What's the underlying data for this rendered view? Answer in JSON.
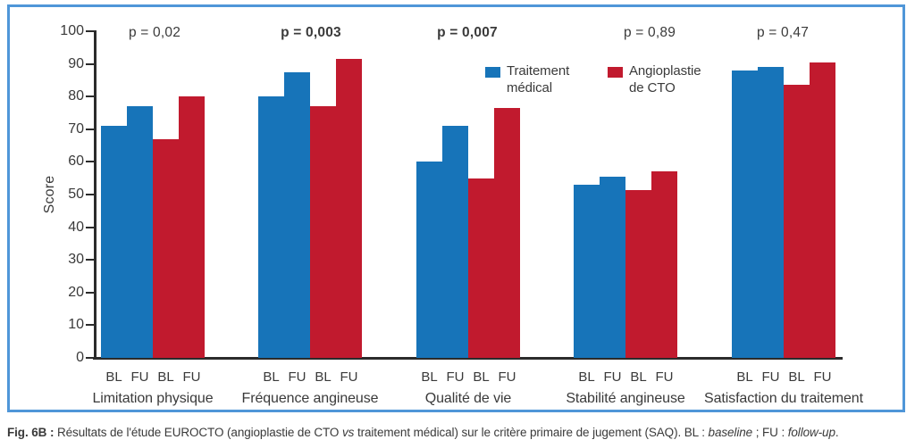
{
  "figure": {
    "panel_border_color": "#4f96d8",
    "axis_color": "#2b2b2b",
    "text_color": "#3a3a3a"
  },
  "chart_data": {
    "type": "bar",
    "title": "",
    "xlabel": "",
    "ylabel": "Score",
    "ylim": [
      0,
      100
    ],
    "yticks": [
      0,
      10,
      20,
      30,
      40,
      50,
      60,
      70,
      80,
      90,
      100
    ],
    "grid": false,
    "legend_position": "top-right-inside",
    "series": [
      {
        "name": "Traitement médical",
        "color": "#1774b9"
      },
      {
        "name": "Angioplastie de CTO",
        "color": "#c11a2e"
      }
    ],
    "bar_order": [
      "Traitement médical BL",
      "Traitement médical FU",
      "Angioplastie de CTO BL",
      "Angioplastie de CTO FU"
    ],
    "bar_sublabels": [
      "BL",
      "FU",
      "BL",
      "FU"
    ],
    "groups": [
      {
        "category": "Limitation physique",
        "p_value_label": "p = 0,02",
        "p_bold": false,
        "values": [
          71,
          77,
          67,
          80
        ]
      },
      {
        "category": "Fréquence angineuse",
        "p_value_label": "p = 0,003",
        "p_bold": true,
        "values": [
          80,
          87.5,
          77,
          91.5
        ]
      },
      {
        "category": "Qualité de vie",
        "p_value_label": "p = 0,007",
        "p_bold": true,
        "values": [
          60,
          71,
          55,
          76.5
        ]
      },
      {
        "category": "Stabilité angineuse",
        "p_value_label": "p = 0,89",
        "p_bold": false,
        "values": [
          53,
          55.5,
          51.5,
          57
        ]
      },
      {
        "category": "Satisfaction du traitement",
        "p_value_label": "p = 0,47",
        "p_bold": false,
        "values": [
          88,
          89,
          83.5,
          90.5
        ]
      }
    ]
  },
  "legend": {
    "items": [
      {
        "label": "Traitement médical",
        "color": "#1774b9"
      },
      {
        "label": "Angioplastie de CTO",
        "color": "#c11a2e"
      }
    ]
  },
  "caption": {
    "parts": [
      {
        "text": "Fig. 6B : ",
        "bold": true
      },
      {
        "text": "Résultats de l'étude EUROCTO (angioplastie de CTO "
      },
      {
        "text": "vs",
        "italic": true
      },
      {
        "text": " traitement médical) sur le critère primaire de jugement (SAQ). BL : "
      },
      {
        "text": "baseline",
        "italic": true
      },
      {
        "text": " ; FU : "
      },
      {
        "text": "follow-up",
        "italic": true
      },
      {
        "text": "."
      }
    ]
  }
}
